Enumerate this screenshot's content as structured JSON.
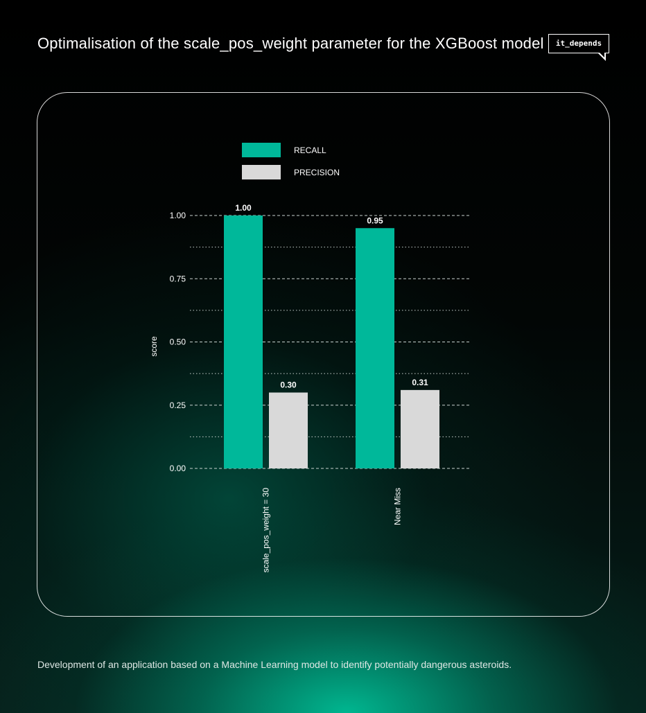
{
  "header": {
    "title": "Optimalisation of the scale_pos_weight parameter for the XGBoost model",
    "badge": "it_depends"
  },
  "footer": {
    "caption": "Development of an application based on a Machine Learning model to identify potentially dangerous asteroids."
  },
  "colors": {
    "recall": "#00b89a",
    "precision": "#d9d9d9",
    "background": "#020303",
    "accent": "#00b89a"
  },
  "chart_data": {
    "type": "bar",
    "title": "",
    "xlabel": "",
    "ylabel": "score",
    "categories": [
      "scale_pos_weight = 30",
      "Near Miss"
    ],
    "series": [
      {
        "name": "RECALL",
        "values": [
          1.0,
          0.95
        ],
        "labels": [
          "1.00",
          "0.95"
        ]
      },
      {
        "name": "PRECISION",
        "values": [
          0.3,
          0.31
        ],
        "labels": [
          "0.30",
          "0.31"
        ]
      }
    ],
    "ylim": [
      0,
      1
    ],
    "yticks": [
      0,
      0.25,
      0.5,
      0.75,
      1.0
    ],
    "ytick_labels": [
      "0.00",
      "0.25",
      "0.50",
      "0.75",
      "1.00"
    ],
    "grid": true,
    "legend_position": "top-left",
    "category_label_rotation": "vertical"
  }
}
